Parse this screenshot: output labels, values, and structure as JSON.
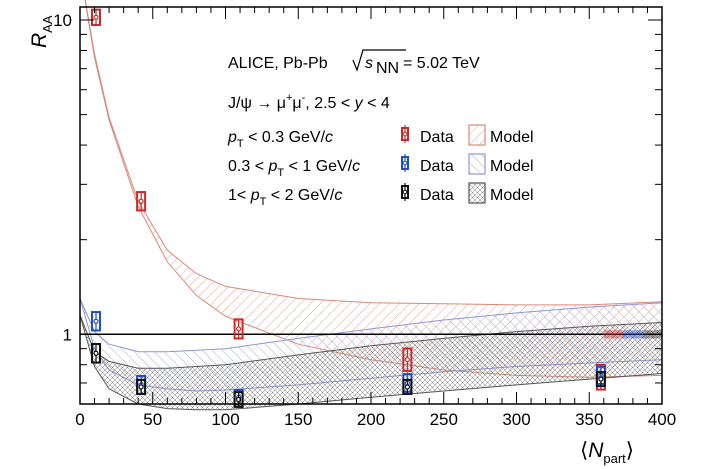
{
  "chart_data": {
    "type": "scatter",
    "title": "",
    "xlabel": "⟨N_part⟩",
    "ylabel": "R_AA",
    "xlim": [
      0,
      400
    ],
    "ylim": [
      0.6,
      11
    ],
    "yscale": "log",
    "x_ticks": [
      0,
      50,
      100,
      150,
      200,
      250,
      300,
      350,
      400
    ],
    "y_ticks": [
      1,
      10
    ],
    "reference_line": 1,
    "annotations": {
      "line1_prefix": "ALICE, Pb-Pb",
      "line1_root": "s",
      "line1_root_sub": "NN",
      "line1_value": "= 5.02 TeV",
      "line2_prefix": "J/ψ → μ",
      "line2_mu_plus_sup": "+",
      "line2_mu_minus": "μ",
      "line2_mu_minus_sup": "-",
      "line2_middle": ", 2.5 <",
      "line2_var": "y",
      "line2_suffix": "< 4"
    },
    "legend": {
      "rows": [
        {
          "pre": "",
          "p": "p",
          "sub": "T",
          "post": " < 0.3 GeV/",
          "c": "c",
          "data_label": "Data",
          "model_label": "Model",
          "color": "#cc2a2a",
          "band_color": "#d98a7a"
        },
        {
          "pre": "0.3 < ",
          "p": "p",
          "sub": "T",
          "post": " < 1 GeV/",
          "c": "c",
          "data_label": "Data",
          "model_label": "Model",
          "color": "#1f4fc7",
          "band_color": "#8f95d6"
        },
        {
          "pre": "1< ",
          "p": "p",
          "sub": "T",
          "post": " < 2 GeV/",
          "c": "c",
          "data_label": "Data",
          "model_label": "Model",
          "color": "#111111",
          "band_color": "#555555"
        }
      ]
    },
    "series": [
      {
        "name": "p_T < 0.3 GeV/c Data",
        "color": "#cc2a2a",
        "x": [
          11,
          42,
          109,
          225,
          358
        ],
        "y": [
          10.2,
          2.65,
          1.04,
          0.83,
          0.73
        ],
        "err": [
          0.35,
          0.12,
          0.05,
          0.05,
          0.05
        ]
      },
      {
        "name": "0.3 < p_T < 1 GeV/c Data",
        "color": "#1f4fc7",
        "x": [
          11,
          42,
          109,
          225,
          358
        ],
        "y": [
          1.1,
          0.69,
          0.63,
          0.7,
          0.74
        ],
        "err": [
          0.05,
          0.03,
          0.02,
          0.03,
          0.03
        ]
      },
      {
        "name": "1 < p_T < 2 GeV/c Data",
        "color": "#111111",
        "x": [
          11,
          42,
          109,
          225,
          358
        ],
        "y": [
          0.87,
          0.68,
          0.62,
          0.68,
          0.72
        ],
        "err": [
          0.04,
          0.02,
          0.02,
          0.02,
          0.02
        ]
      }
    ],
    "model_bands": [
      {
        "name": "p_T < 0.3 GeV/c Model",
        "color": "#d98a7a",
        "x": [
          0,
          10,
          20,
          40,
          60,
          80,
          100,
          150,
          200,
          250,
          300,
          350,
          400
        ],
        "low": [
          14.5,
          7.6,
          4.8,
          2.55,
          1.7,
          1.33,
          1.14,
          0.93,
          0.83,
          0.77,
          0.74,
          0.73,
          0.74
        ],
        "high": [
          14.5,
          7.8,
          4.9,
          2.65,
          1.85,
          1.56,
          1.42,
          1.3,
          1.26,
          1.25,
          1.24,
          1.24,
          1.27
        ]
      },
      {
        "name": "0.3 < p_T < 1 GeV/c Model",
        "color": "#8f95d6",
        "x": [
          0,
          10,
          20,
          40,
          60,
          80,
          100,
          150,
          200,
          250,
          300,
          350,
          400
        ],
        "low": [
          1.3,
          0.9,
          0.77,
          0.69,
          0.67,
          0.66,
          0.665,
          0.69,
          0.725,
          0.76,
          0.79,
          0.81,
          0.83
        ],
        "high": [
          1.3,
          1.02,
          0.93,
          0.88,
          0.88,
          0.89,
          0.9,
          0.97,
          1.04,
          1.11,
          1.17,
          1.22,
          1.26
        ]
      },
      {
        "name": "1 < p_T < 2 GeV/c Model",
        "color": "#555555",
        "x": [
          0,
          10,
          20,
          40,
          60,
          80,
          100,
          150,
          200,
          250,
          300,
          350,
          400
        ],
        "low": [
          1.15,
          0.79,
          0.67,
          0.6,
          0.58,
          0.575,
          0.575,
          0.6,
          0.63,
          0.66,
          0.69,
          0.72,
          0.75
        ],
        "high": [
          1.15,
          0.88,
          0.82,
          0.78,
          0.78,
          0.79,
          0.8,
          0.86,
          0.92,
          0.97,
          1.02,
          1.06,
          1.09
        ]
      }
    ],
    "normalization_boxes": [
      {
        "color": "#cc2a2a",
        "x_range": [
          360,
          373
        ],
        "half_height": 0.03
      },
      {
        "color": "#1f4fc7",
        "x_range": [
          373,
          387
        ],
        "half_height": 0.03
      },
      {
        "color": "#333333",
        "x_range": [
          387,
          400
        ],
        "half_height": 0.03
      }
    ],
    "grid": false
  }
}
